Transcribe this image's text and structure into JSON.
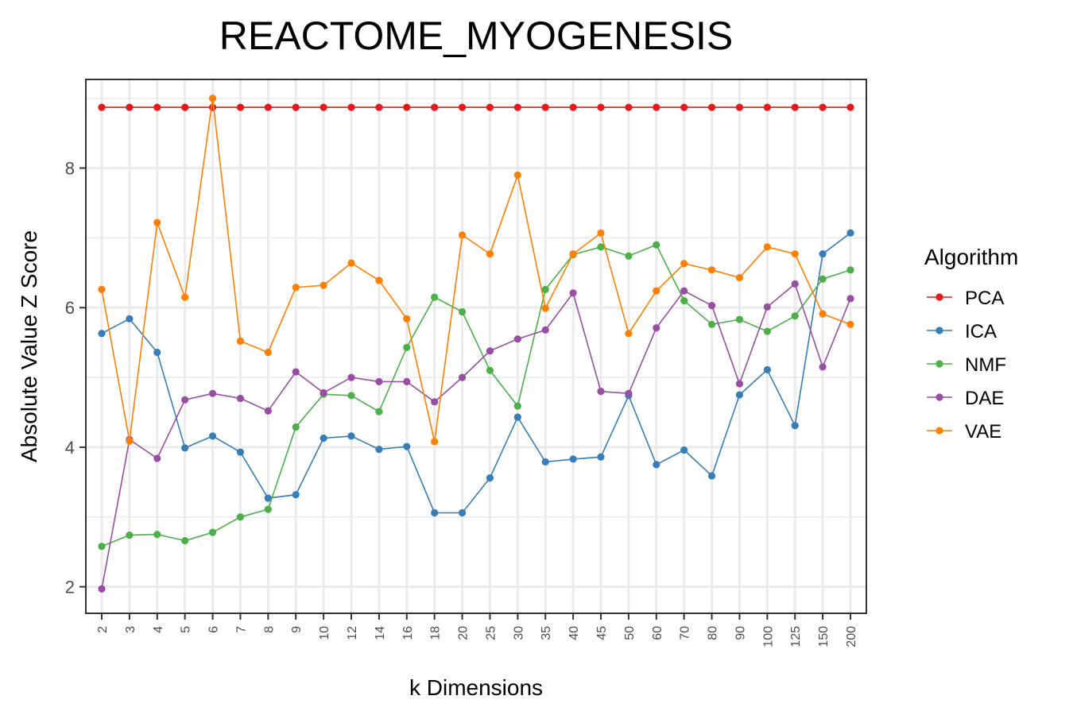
{
  "chart_data": {
    "type": "line",
    "title": "REACTOME_MYOGENESIS",
    "xlabel": "k Dimensions",
    "ylabel": "Absolute Value Z Score",
    "categories": [
      "2",
      "3",
      "4",
      "5",
      "6",
      "7",
      "8",
      "9",
      "10",
      "12",
      "14",
      "16",
      "18",
      "20",
      "25",
      "30",
      "35",
      "40",
      "45",
      "50",
      "60",
      "70",
      "80",
      "90",
      "100",
      "125",
      "150",
      "200"
    ],
    "yticks": [
      2,
      4,
      6,
      8
    ],
    "ylim": [
      1.62,
      9.27
    ],
    "grid": true,
    "legend": {
      "title": "Algorithm",
      "position": "right"
    },
    "series": [
      {
        "name": "PCA",
        "color": "#e41a1c",
        "values": [
          8.87,
          8.87,
          8.87,
          8.87,
          8.87,
          8.87,
          8.87,
          8.87,
          8.87,
          8.87,
          8.87,
          8.87,
          8.87,
          8.87,
          8.87,
          8.87,
          8.87,
          8.87,
          8.87,
          8.87,
          8.87,
          8.87,
          8.87,
          8.87,
          8.87,
          8.87,
          8.87,
          8.87
        ]
      },
      {
        "name": "ICA",
        "color": "#377eb8",
        "values": [
          5.63,
          5.84,
          5.36,
          3.99,
          4.16,
          3.93,
          3.27,
          3.32,
          4.13,
          4.16,
          3.97,
          4.01,
          3.06,
          3.06,
          3.56,
          4.43,
          3.79,
          3.83,
          3.86,
          4.74,
          3.75,
          3.96,
          3.59,
          4.75,
          5.11,
          4.31,
          6.77,
          7.07
        ]
      },
      {
        "name": "NMF",
        "color": "#4daf4a",
        "values": [
          2.58,
          2.74,
          2.75,
          2.66,
          2.78,
          3.0,
          3.11,
          4.29,
          4.76,
          4.74,
          4.51,
          5.43,
          6.15,
          5.94,
          5.1,
          4.59,
          6.26,
          6.76,
          6.87,
          6.74,
          6.9,
          6.1,
          5.76,
          5.83,
          5.66,
          5.88,
          6.41,
          6.54
        ]
      },
      {
        "name": "DAE",
        "color": "#984ea3",
        "values": [
          1.97,
          4.11,
          3.84,
          4.68,
          4.77,
          4.7,
          4.52,
          5.08,
          4.78,
          5.0,
          4.94,
          4.94,
          4.65,
          5.0,
          5.38,
          5.55,
          5.68,
          6.21,
          4.8,
          4.77,
          5.71,
          6.24,
          6.03,
          4.91,
          6.01,
          6.34,
          5.15,
          6.13
        ]
      },
      {
        "name": "VAE",
        "color": "#ff7f00",
        "values": [
          6.26,
          4.09,
          7.22,
          6.15,
          9.0,
          5.52,
          5.36,
          6.29,
          6.32,
          6.64,
          6.39,
          5.84,
          4.08,
          7.04,
          6.77,
          7.9,
          5.99,
          6.77,
          7.07,
          5.63,
          6.24,
          6.63,
          6.54,
          6.43,
          6.87,
          6.77,
          5.91,
          5.76
        ]
      }
    ]
  }
}
